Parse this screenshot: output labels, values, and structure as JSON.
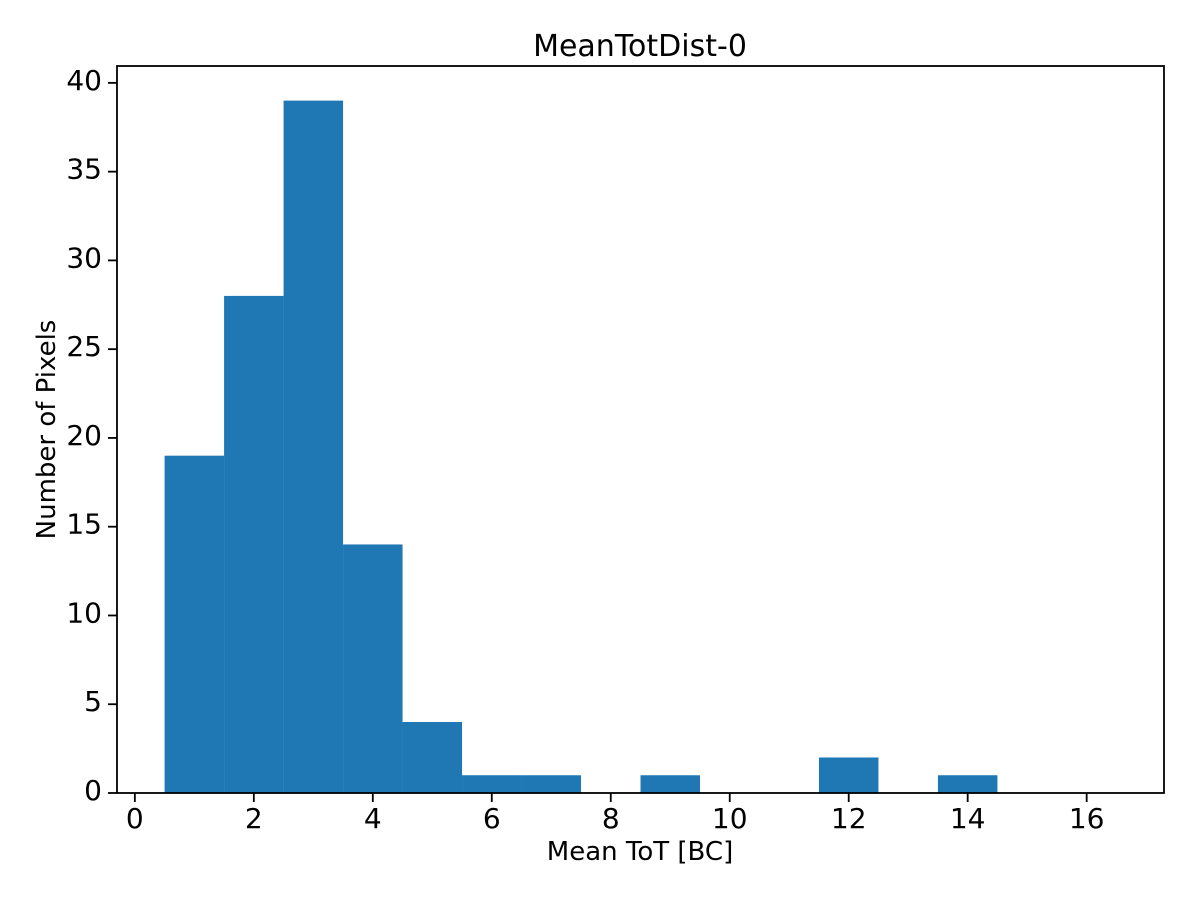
{
  "colors": {
    "bar": "#1f77b4",
    "axis": "#000000",
    "background": "#ffffff",
    "text": "#000000"
  },
  "chart_data": {
    "type": "bar",
    "subtype": "histogram",
    "title": "MeanTotDist-0",
    "xlabel": "Mean ToT [BC]",
    "ylabel": "Number of Pixels",
    "bin_edges": [
      0.5,
      1.5,
      2.5,
      3.5,
      4.5,
      5.5,
      6.5,
      7.5,
      8.5,
      9.5,
      10.5,
      11.5,
      12.5,
      13.5,
      14.5,
      15.5,
      16.5
    ],
    "counts": [
      19,
      28,
      39,
      14,
      4,
      1,
      1,
      0,
      1,
      0,
      0,
      2,
      0,
      1,
      0,
      0
    ],
    "xlim": [
      -0.3,
      17.3
    ],
    "ylim": [
      0,
      40.95
    ],
    "xtick_values": [
      0,
      2,
      4,
      6,
      8,
      10,
      12,
      14,
      16
    ],
    "xtick_labels": [
      "0",
      "2",
      "4",
      "6",
      "8",
      "10",
      "12",
      "14",
      "16"
    ],
    "ytick_values": [
      0,
      5,
      10,
      15,
      20,
      25,
      30,
      35,
      40
    ],
    "ytick_labels": [
      "0",
      "5",
      "10",
      "15",
      "20",
      "25",
      "30",
      "35",
      "40"
    ],
    "grid": false,
    "legend_position": "none"
  }
}
